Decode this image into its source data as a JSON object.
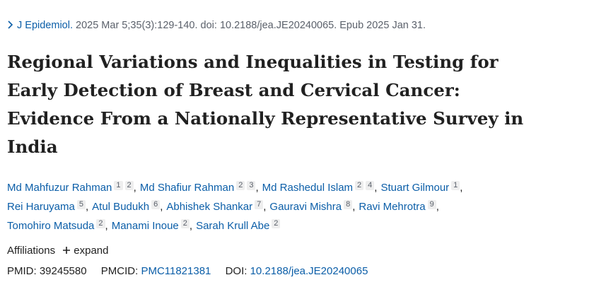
{
  "citation": {
    "journal": "J Epidemiol.",
    "details": "2025 Mar 5;35(3):129-140. doi: 10.2188/jea.JE20240065. Epub 2025 Jan 31."
  },
  "title": [
    "Regional Variations and Inequalities in Testing for",
    "Early Detection of Breast and Cervical Cancer:",
    "Evidence From a Nationally Representative Survey in",
    "India"
  ],
  "authors": [
    [
      {
        "name": "Md Mahfuzur Rahman",
        "affiliations": [
          "1",
          "2"
        ],
        "separator": ","
      },
      {
        "name": "Md Shafiur Rahman",
        "affiliations": [
          "2",
          "3"
        ],
        "separator": ","
      },
      {
        "name": "Md Rashedul Islam",
        "affiliations": [
          "2",
          "4"
        ],
        "separator": ","
      },
      {
        "name": "Stuart Gilmour",
        "affiliations": [
          "1"
        ],
        "separator": ","
      }
    ],
    [
      {
        "name": "Rei Haruyama",
        "affiliations": [
          "5"
        ],
        "separator": ","
      },
      {
        "name": "Atul Budukh",
        "affiliations": [
          "6"
        ],
        "separator": ","
      },
      {
        "name": "Abhishek Shankar",
        "affiliations": [
          "7"
        ],
        "separator": ","
      },
      {
        "name": "Gauravi Mishra",
        "affiliations": [
          "8"
        ],
        "separator": ","
      },
      {
        "name": "Ravi Mehrotra",
        "affiliations": [
          "9"
        ],
        "separator": ","
      }
    ],
    [
      {
        "name": "Tomohiro Matsuda",
        "affiliations": [
          "2"
        ],
        "separator": ","
      },
      {
        "name": "Manami Inoue",
        "affiliations": [
          "2"
        ],
        "separator": ","
      },
      {
        "name": "Sarah Krull Abe",
        "affiliations": [
          "2"
        ]
      }
    ]
  ],
  "affiliations": {
    "label": "Affiliations",
    "toggle": "expand"
  },
  "identifiers": {
    "pmid_label": "PMID:",
    "pmid": "39245580",
    "pmcid_label": "PMCID:",
    "pmcid": "PMC11821381",
    "doi_label": "DOI:",
    "doi": "10.2188/jea.JE20240065"
  }
}
